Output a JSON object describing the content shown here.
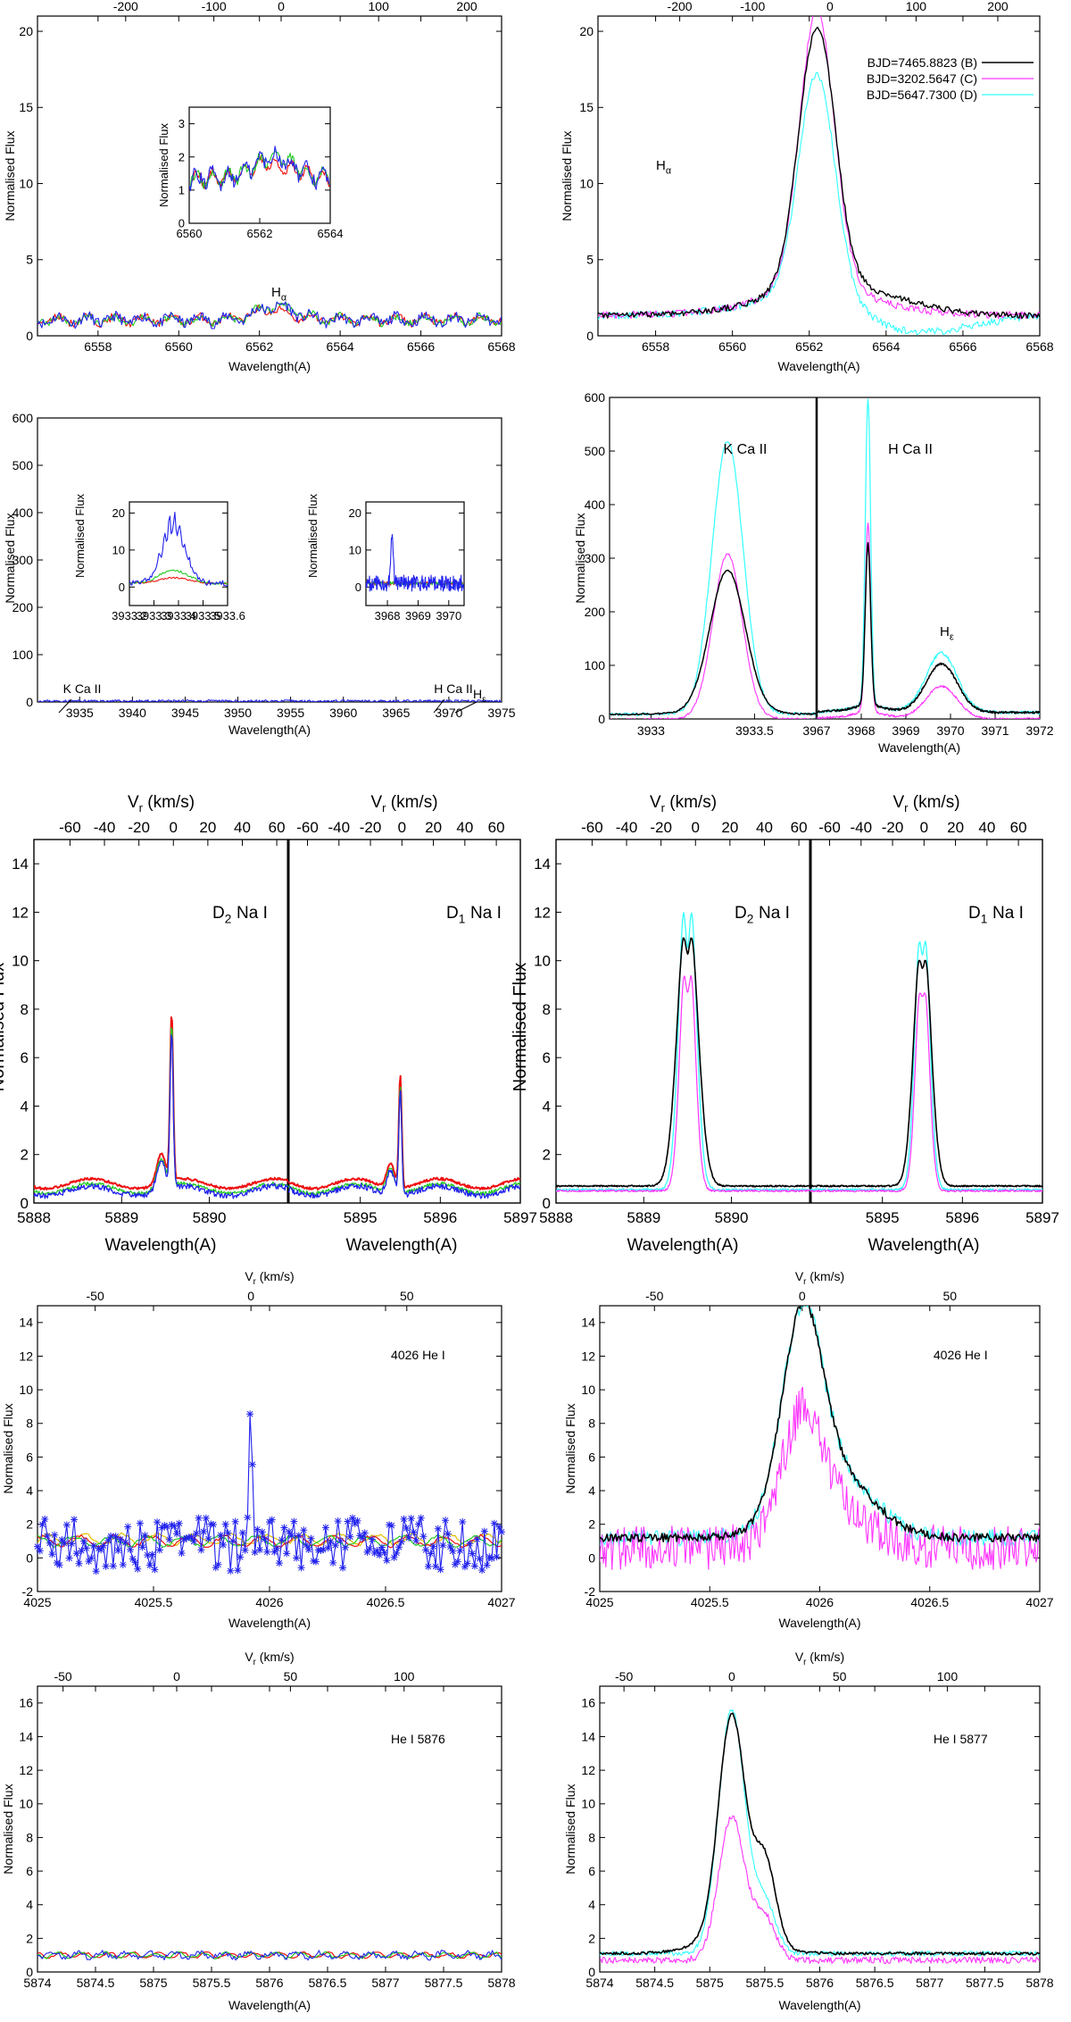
{
  "colors": {
    "B": "#000000",
    "C": "#ff33ff",
    "D": "#33ffff",
    "blue": "#2222ee",
    "red": "#ee1111",
    "green": "#22cc22",
    "yellow": "#e0c000"
  },
  "chart_data": [
    {
      "id": "p1",
      "type": "line",
      "title": "Hα",
      "xlabel": "Wavelength(A)",
      "ylabel": "Normalised Flux",
      "top_axis_label": "Vr (km/s)",
      "xlim": [
        6556.5,
        6568
      ],
      "ylim": [
        0,
        21
      ],
      "xticks": [
        6558,
        6560,
        6562,
        6564,
        6566,
        6568
      ],
      "yticks": [
        0,
        5,
        10,
        15,
        20
      ],
      "top_ticks": [
        "-200",
        "-100",
        "0",
        "100",
        "200"
      ],
      "series": [
        {
          "name": "red",
          "color": "red"
        },
        {
          "name": "green",
          "color": "green"
        },
        {
          "name": "blue",
          "color": "blue"
        }
      ],
      "annotation": "Hα",
      "inset": {
        "xlim": [
          6560,
          6564
        ],
        "ylim": [
          0,
          3.5
        ],
        "xticks": [
          6560,
          6562,
          6564
        ],
        "yticks": [
          0,
          1,
          2,
          3
        ],
        "ylabel": "Normalised Flux"
      }
    },
    {
      "id": "p2",
      "type": "line",
      "title": "Hα",
      "xlabel": "Wavelength(A)",
      "ylabel": "Normalised Flux",
      "top_axis_label": "Vr (km/s)",
      "xlim": [
        6556.5,
        6568
      ],
      "ylim": [
        0,
        21
      ],
      "xticks": [
        6558,
        6560,
        6562,
        6564,
        6566,
        6568
      ],
      "yticks": [
        0,
        5,
        10,
        15,
        20
      ],
      "top_ticks": [
        "-200",
        "-100",
        "0",
        "100",
        "200"
      ],
      "legend": [
        "BJD=7465.8823 (B)",
        "BJD=3202.5647 (C)",
        "BJD=5647.7300 (D)"
      ],
      "annotation": "Hα"
    },
    {
      "id": "p3",
      "type": "line",
      "xlabel": "Wavelength(A)",
      "ylabel": "Normalised Flux",
      "xlim": [
        3931,
        3975
      ],
      "ylim": [
        0,
        600
      ],
      "xticks": [
        3935,
        3940,
        3945,
        3950,
        3955,
        3960,
        3965,
        3970,
        3975
      ],
      "yticks": [
        0,
        100,
        200,
        300,
        400,
        500,
        600
      ],
      "annotations": [
        "K Ca II",
        "H Ca II",
        "Hε"
      ],
      "inset1": {
        "xlim": [
          3933.2,
          3933.6
        ],
        "ylim": [
          -5,
          23
        ],
        "xticks": [
          3933.2,
          3933.3,
          3933.4,
          3933.5,
          3933.6
        ],
        "yticks": [
          0,
          10,
          20
        ],
        "ylabel": "Normalised Flux"
      },
      "inset2": {
        "xlim": [
          3967.3,
          3970.5
        ],
        "ylim": [
          -5,
          23
        ],
        "xticks": [
          3968,
          3969,
          3970
        ],
        "yticks": [
          0,
          10,
          20
        ],
        "ylabel": "Normalised Flux"
      }
    },
    {
      "id": "p4",
      "type": "line",
      "xlabel": "Wavelength(A)",
      "ylabel": "Normalised Flux",
      "ylim": [
        0,
        600
      ],
      "yticks": [
        0,
        100,
        200,
        300,
        400,
        500,
        600
      ],
      "left": {
        "xticks": [
          "3933",
          "3933.5"
        ],
        "label": "K Ca II"
      },
      "right": {
        "xticks": [
          "3967",
          "3968",
          "3969",
          "3970",
          "3971",
          "3972"
        ],
        "label": "H Ca II",
        "label2": "Hε"
      }
    },
    {
      "id": "p5",
      "type": "line",
      "xlabel": "Wavelength(A)",
      "ylabel": "Normalised Flux",
      "top_axis_label": "Vr (km/s)",
      "ylim": [
        0,
        15
      ],
      "yticks": [
        0,
        2,
        4,
        6,
        8,
        10,
        12,
        14
      ],
      "top_ticks": [
        "-60",
        "-40",
        "-20",
        "0",
        "20",
        "40",
        "60"
      ],
      "left": {
        "xticks": [
          "5888",
          "5889",
          "5890"
        ],
        "label": "D2 Na I"
      },
      "right": {
        "xticks": [
          "5895",
          "5896",
          "5897"
        ],
        "label": "D1 Na I"
      }
    },
    {
      "id": "p6",
      "type": "line",
      "xlabel": "Wavelength(A)",
      "ylabel": "Normalised Flux",
      "top_axis_label": "Vr (km/s)",
      "ylim": [
        0,
        15
      ],
      "yticks": [
        0,
        2,
        4,
        6,
        8,
        10,
        12,
        14
      ],
      "top_ticks": [
        "-60",
        "-40",
        "-20",
        "0",
        "20",
        "40",
        "60"
      ],
      "left": {
        "xticks": [
          "5888",
          "5889",
          "5890"
        ],
        "label": "D2 Na I"
      },
      "right": {
        "xticks": [
          "5895",
          "5896",
          "5897"
        ],
        "label": "D1 Na I"
      }
    },
    {
      "id": "p7",
      "type": "line",
      "title": "4026 He I",
      "xlabel": "Wavelength(A)",
      "ylabel": "Normalised Flux",
      "top_axis_label": "Vr (km/s)",
      "xlim": [
        4025,
        4027
      ],
      "ylim": [
        -2,
        15
      ],
      "xticks": [
        "4025",
        "4025.5",
        "4026",
        "4026.5",
        "4027"
      ],
      "yticks": [
        -2,
        0,
        2,
        4,
        6,
        8,
        10,
        12,
        14
      ],
      "top_ticks": [
        "-50",
        "0",
        "50"
      ]
    },
    {
      "id": "p8",
      "type": "line",
      "title": "4026 He I",
      "xlabel": "Wavelength(A)",
      "ylabel": "Normalised Flux",
      "top_axis_label": "Vr (km/s)",
      "xlim": [
        4025,
        4027
      ],
      "ylim": [
        -2,
        15
      ],
      "xticks": [
        "4025",
        "4025.5",
        "4026",
        "4026.5",
        "4027"
      ],
      "yticks": [
        -2,
        0,
        2,
        4,
        6,
        8,
        10,
        12,
        14
      ],
      "top_ticks": [
        "-50",
        "0",
        "50"
      ]
    },
    {
      "id": "p9",
      "type": "line",
      "title": "He I 5876",
      "xlabel": "Wavelength(A)",
      "ylabel": "Normalised Flux",
      "top_axis_label": "Vr (km/s)",
      "xlim": [
        5874,
        5878
      ],
      "ylim": [
        0,
        17
      ],
      "xticks": [
        "5874",
        "5874.5",
        "5875",
        "5875.5",
        "5876",
        "5876.5",
        "5877",
        "5877.5",
        "5878"
      ],
      "yticks": [
        0,
        2,
        4,
        6,
        8,
        10,
        12,
        14,
        16
      ],
      "top_ticks": [
        "-50",
        "0",
        "50",
        "100"
      ]
    },
    {
      "id": "p10",
      "type": "line",
      "title": "He I 5877",
      "xlabel": "Wavelength(A)",
      "ylabel": "Normalised Flux",
      "top_axis_label": "Vr (km/s)",
      "xlim": [
        5874,
        5878
      ],
      "ylim": [
        0,
        17
      ],
      "xticks": [
        "5874",
        "5874.5",
        "5875",
        "5875.5",
        "5876",
        "5876.5",
        "5877",
        "5877.5",
        "5878"
      ],
      "yticks": [
        0,
        2,
        4,
        6,
        8,
        10,
        12,
        14,
        16
      ],
      "top_ticks": [
        "-50",
        "0",
        "50",
        "100"
      ]
    }
  ]
}
